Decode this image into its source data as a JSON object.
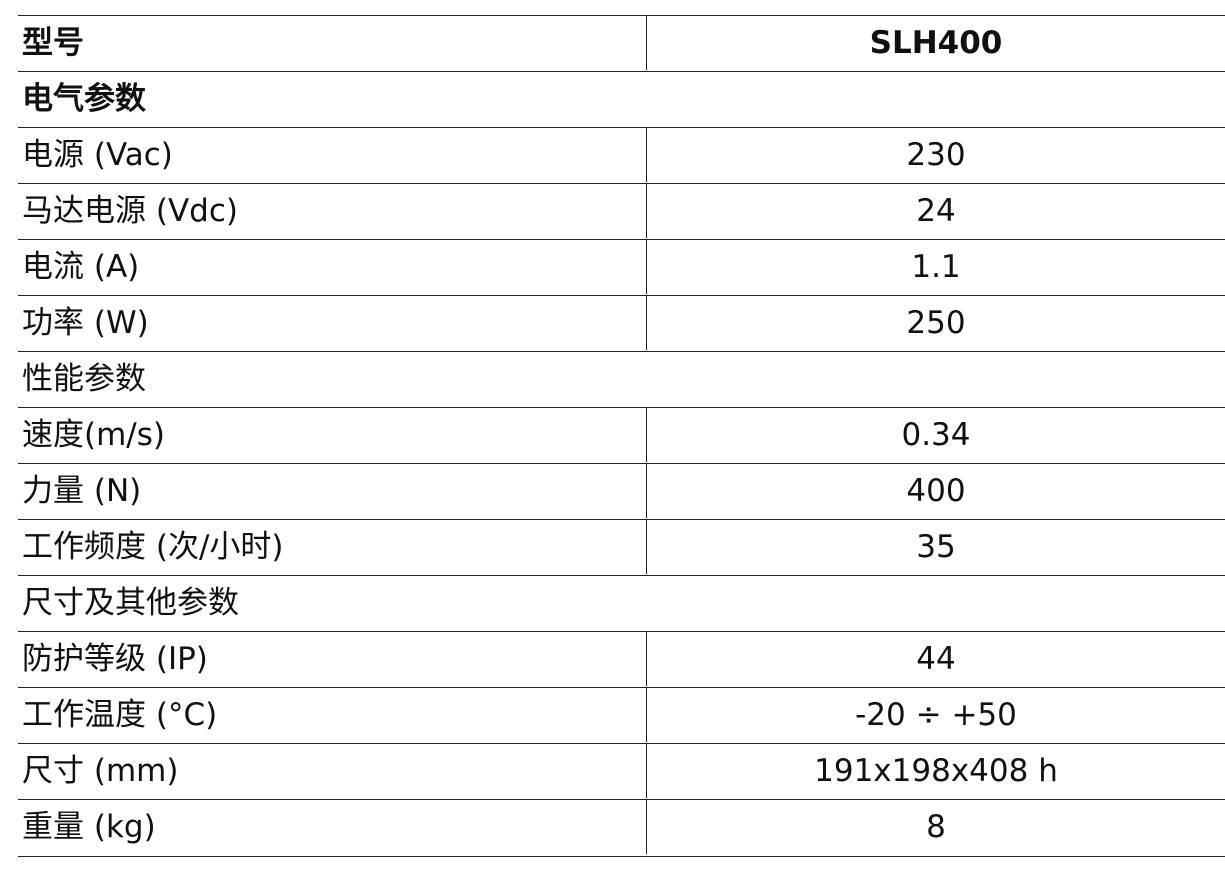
{
  "header": {
    "label": "型号",
    "value": "SLH400"
  },
  "sections": [
    {
      "title": "电气参数",
      "rows": [
        [
          "电源 (Vac)",
          "230"
        ],
        [
          "马达电源 (Vdc)",
          "24"
        ],
        [
          "电流 (A)",
          "1.1"
        ],
        [
          "功率 (W)",
          "250"
        ]
      ]
    },
    {
      "title": "性能参数",
      "rows": [
        [
          "速度(m/s)",
          "0.34"
        ],
        [
          "力量 (N)",
          "400"
        ],
        [
          "工作频度 (次/小时)",
          "35"
        ]
      ]
    },
    {
      "title": "尺寸及其他参数",
      "rows": [
        [
          "防护等级 (IP)",
          "44"
        ],
        [
          "工作温度 (°C)",
          "-20 ÷ +50"
        ],
        [
          "尺寸 (mm)",
          "191x198x408 h"
        ],
        [
          "重量 (kg)",
          "8"
        ]
      ]
    }
  ]
}
